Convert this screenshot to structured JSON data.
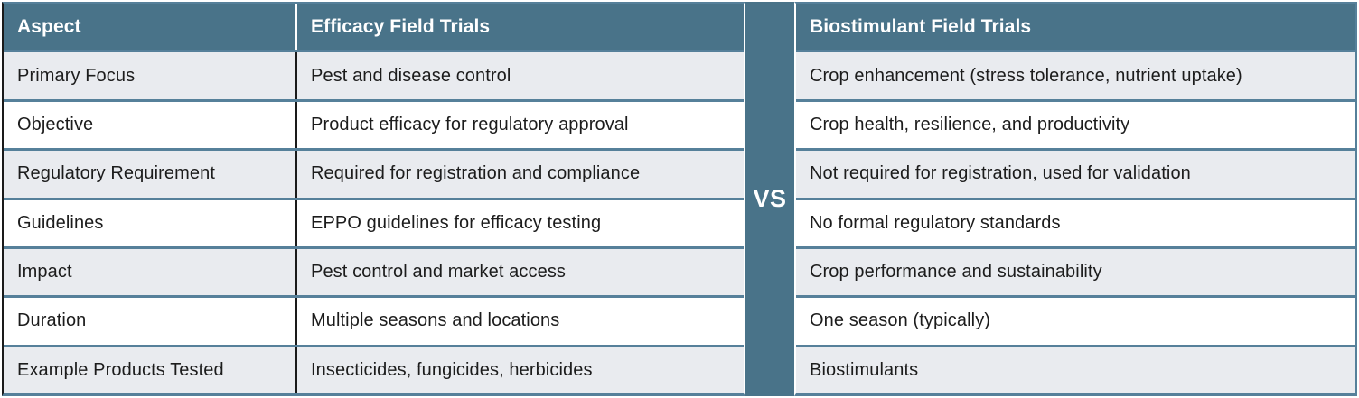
{
  "divider": {
    "label": "VS"
  },
  "colors": {
    "header_background": "#497389",
    "row_stripe": "#E9EBEF",
    "row_border": "#56809A",
    "column_divider": "#1A1A1A",
    "header_text": "#FFFFFF",
    "body_text": "#1C1C1C"
  },
  "left_table": {
    "headers": [
      "Aspect",
      "Efficacy Field Trials"
    ],
    "rows": [
      [
        "Primary Focus",
        "Pest and disease control"
      ],
      [
        "Objective",
        "Product efficacy for regulatory approval"
      ],
      [
        "Regulatory Requirement",
        "Required for registration and compliance"
      ],
      [
        "Guidelines",
        "EPPO guidelines for efficacy testing"
      ],
      [
        "Impact",
        "Pest control and market access"
      ],
      [
        "Duration",
        "Multiple seasons and locations"
      ],
      [
        "Example Products Tested",
        "Insecticides, fungicides, herbicides"
      ]
    ]
  },
  "right_table": {
    "header": "Biostimulant Field Trials",
    "rows": [
      "Crop enhancement (stress tolerance, nutrient uptake)",
      "Crop health, resilience, and productivity",
      "Not required for registration, used for validation",
      "No formal regulatory standards",
      "Crop performance and sustainability",
      "One season (typically)",
      "Biostimulants"
    ]
  }
}
